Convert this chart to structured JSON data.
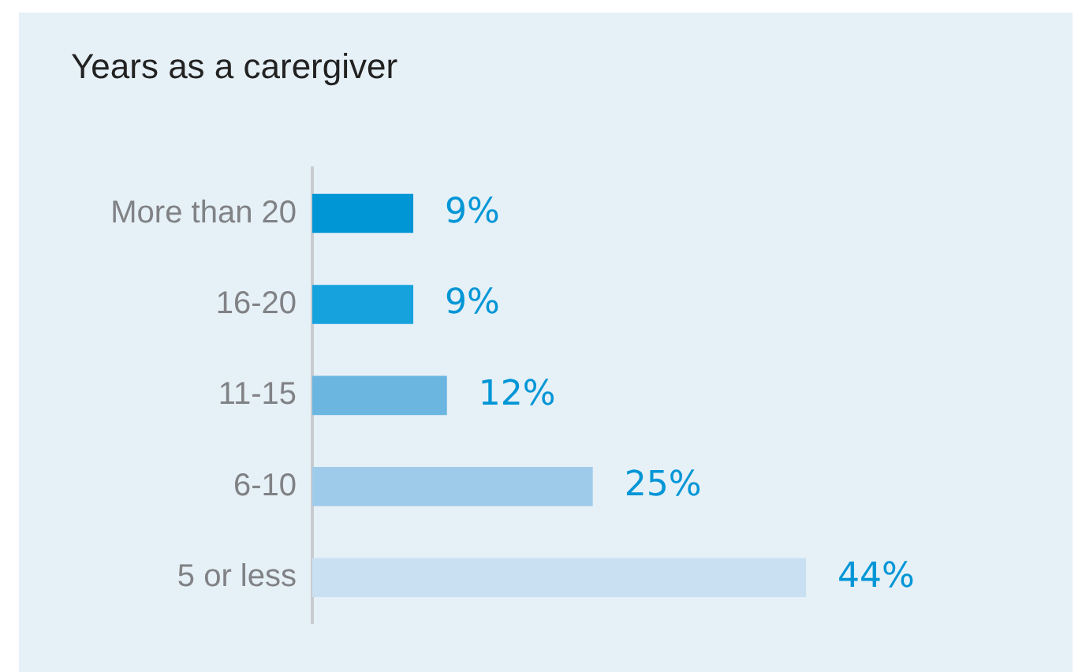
{
  "chart_data": {
    "type": "bar",
    "orientation": "horizontal",
    "title": "Years as a carergiver",
    "categories": [
      "More than 20",
      "16-20",
      "11-15",
      "6-10",
      "5 or less"
    ],
    "values": [
      9,
      9,
      12,
      25,
      44
    ],
    "colors": [
      "#0096d6",
      "#16a2dc",
      "#6bb6e0",
      "#9fcbea",
      "#c9e0f2"
    ],
    "value_labels": [
      "9%",
      "9%",
      "12%",
      "25%",
      "44%"
    ],
    "grid": false,
    "legend": false
  }
}
